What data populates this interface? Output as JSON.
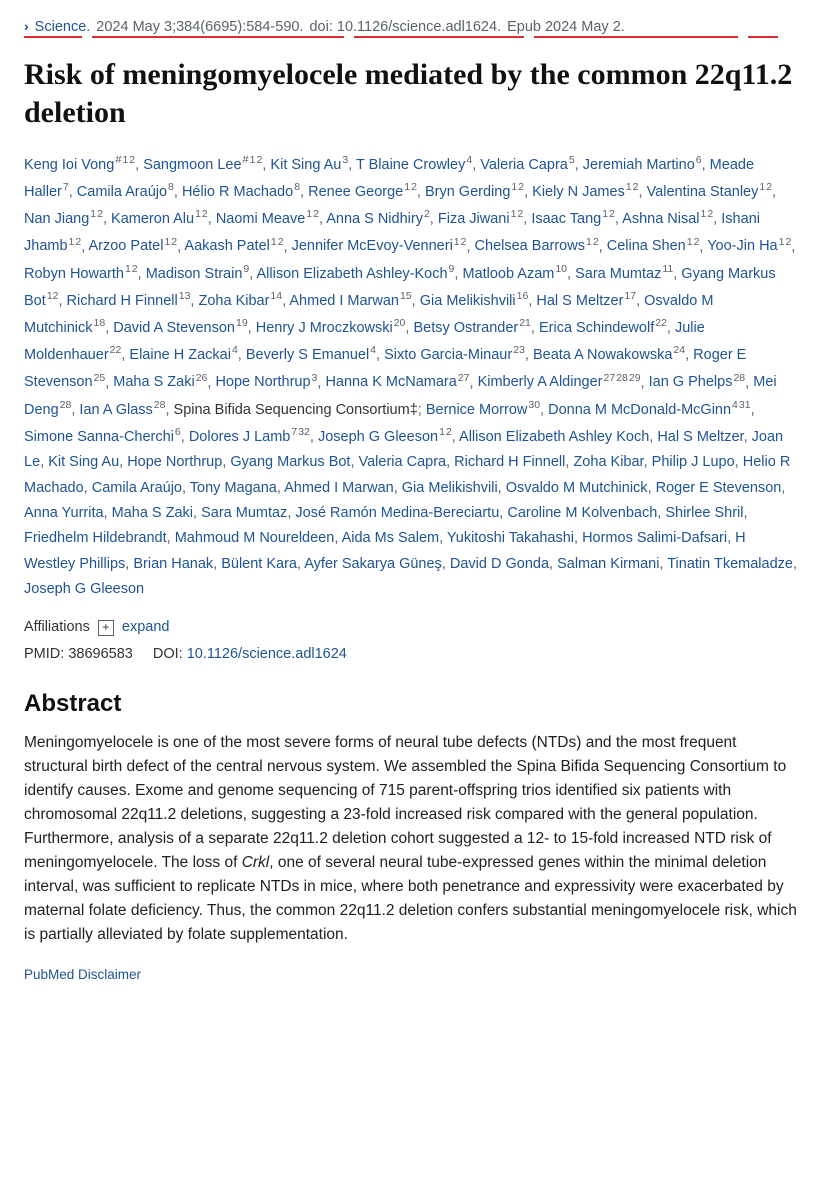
{
  "citation": {
    "journal": "Science.",
    "dateIssue": "2024 May 3;384(6695):584-590.",
    "doi": "doi: 10.1126/science.adl1624.",
    "epub": "Epub 2024 May 2."
  },
  "underlineWidths": [
    58,
    252,
    170,
    204,
    30
  ],
  "title": "Risk of meningomyelocele mediated by the common 22q11.2 deletion",
  "authors": [
    {
      "name": "Keng Ioi Vong",
      "sup": "# 1 2"
    },
    {
      "name": "Sangmoon Lee",
      "sup": "# 1 2"
    },
    {
      "name": "Kit Sing Au",
      "sup": "3"
    },
    {
      "name": "T Blaine Crowley",
      "sup": "4"
    },
    {
      "name": "Valeria Capra",
      "sup": "5"
    },
    {
      "name": "Jeremiah Martino",
      "sup": "6"
    },
    {
      "name": "Meade Haller",
      "sup": "7"
    },
    {
      "name": "Camila Araújo",
      "sup": "8"
    },
    {
      "name": "Hélio R Machado",
      "sup": "8"
    },
    {
      "name": "Renee George",
      "sup": "1 2"
    },
    {
      "name": "Bryn Gerding",
      "sup": "1 2"
    },
    {
      "name": "Kiely N James",
      "sup": "1 2"
    },
    {
      "name": "Valentina Stanley",
      "sup": "1 2"
    },
    {
      "name": "Nan Jiang",
      "sup": "1 2"
    },
    {
      "name": "Kameron Alu",
      "sup": "1 2"
    },
    {
      "name": "Naomi Meave",
      "sup": "1 2"
    },
    {
      "name": "Anna S Nidhiry",
      "sup": "2"
    },
    {
      "name": "Fiza Jiwani",
      "sup": "1 2"
    },
    {
      "name": "Isaac Tang",
      "sup": "1 2"
    },
    {
      "name": "Ashna Nisal",
      "sup": "1 2"
    },
    {
      "name": "Ishani Jhamb",
      "sup": "1 2"
    },
    {
      "name": "Arzoo Patel",
      "sup": "1 2"
    },
    {
      "name": "Aakash Patel",
      "sup": "1 2"
    },
    {
      "name": "Jennifer McEvoy-Venneri",
      "sup": "1 2"
    },
    {
      "name": "Chelsea Barrows",
      "sup": "1 2"
    },
    {
      "name": "Celina Shen",
      "sup": "1 2"
    },
    {
      "name": "Yoo-Jin Ha",
      "sup": "1 2"
    },
    {
      "name": "Robyn Howarth",
      "sup": "1 2"
    },
    {
      "name": "Madison Strain",
      "sup": "9"
    },
    {
      "name": "Allison Elizabeth Ashley-Koch",
      "sup": "9"
    },
    {
      "name": "Matloob Azam",
      "sup": "10"
    },
    {
      "name": "Sara Mumtaz",
      "sup": "11"
    },
    {
      "name": "Gyang Markus Bot",
      "sup": "12"
    },
    {
      "name": "Richard H Finnell",
      "sup": "13"
    },
    {
      "name": "Zoha Kibar",
      "sup": "14"
    },
    {
      "name": "Ahmed I Marwan",
      "sup": "15"
    },
    {
      "name": "Gia Melikishvili",
      "sup": "16"
    },
    {
      "name": "Hal S Meltzer",
      "sup": "17"
    },
    {
      "name": "Osvaldo M Mutchinick",
      "sup": "18"
    },
    {
      "name": "David A Stevenson",
      "sup": "19"
    },
    {
      "name": "Henry J Mroczkowski",
      "sup": "20"
    },
    {
      "name": "Betsy Ostrander",
      "sup": "21"
    },
    {
      "name": "Erica Schindewolf",
      "sup": "22"
    },
    {
      "name": "Julie Moldenhauer",
      "sup": "22"
    },
    {
      "name": "Elaine H Zackai",
      "sup": "4"
    },
    {
      "name": "Beverly S Emanuel",
      "sup": "4"
    },
    {
      "name": "Sixto Garcia-Minaur",
      "sup": "23"
    },
    {
      "name": "Beata A Nowakowska",
      "sup": "24"
    },
    {
      "name": "Roger E Stevenson",
      "sup": "25"
    },
    {
      "name": "Maha S Zaki",
      "sup": "26"
    },
    {
      "name": "Hope Northrup",
      "sup": "3"
    },
    {
      "name": "Hanna K McNamara",
      "sup": "27"
    },
    {
      "name": "Kimberly A Aldinger",
      "sup": "27 28 29"
    },
    {
      "name": "Ian G Phelps",
      "sup": "28"
    },
    {
      "name": "Mei Deng",
      "sup": "28"
    },
    {
      "name": "Ian A Glass",
      "sup": "28"
    },
    {
      "name": "Spina Bifida Sequencing Consortium‡",
      "sup": "",
      "nolink": true,
      "trailingSemi": true
    },
    {
      "name": "Bernice Morrow",
      "sup": "30"
    },
    {
      "name": "Donna M McDonald-McGinn",
      "sup": "4 31"
    },
    {
      "name": "Simone Sanna-Cherchi",
      "sup": "6"
    },
    {
      "name": "Dolores J Lamb",
      "sup": "7 32"
    },
    {
      "name": "Joseph G Gleeson",
      "sup": "1 2"
    },
    {
      "name": "Allison Elizabeth Ashley Koch",
      "sup": ""
    },
    {
      "name": "Hal S Meltzer",
      "sup": ""
    },
    {
      "name": "Joan Le",
      "sup": ""
    },
    {
      "name": "Kit Sing Au",
      "sup": ""
    },
    {
      "name": "Hope Northrup",
      "sup": ""
    },
    {
      "name": "Gyang Markus Bot",
      "sup": ""
    },
    {
      "name": "Valeria Capra",
      "sup": ""
    },
    {
      "name": "Richard H Finnell",
      "sup": ""
    },
    {
      "name": "Zoha Kibar",
      "sup": ""
    },
    {
      "name": "Philip J Lupo",
      "sup": ""
    },
    {
      "name": "Helio R Machado",
      "sup": ""
    },
    {
      "name": "Camila Araújo",
      "sup": ""
    },
    {
      "name": "Tony Magana",
      "sup": ""
    },
    {
      "name": "Ahmed I Marwan",
      "sup": ""
    },
    {
      "name": "Gia Melikishvili",
      "sup": ""
    },
    {
      "name": "Osvaldo M Mutchinick",
      "sup": ""
    },
    {
      "name": "Roger E Stevenson",
      "sup": ""
    },
    {
      "name": "Anna Yurrita",
      "sup": ""
    },
    {
      "name": "Maha S Zaki",
      "sup": ""
    },
    {
      "name": "Sara Mumtaz",
      "sup": ""
    },
    {
      "name": "José Ramón Medina-Bereciartu",
      "sup": ""
    },
    {
      "name": "Caroline M Kolvenbach",
      "sup": ""
    },
    {
      "name": "Shirlee Shril",
      "sup": ""
    },
    {
      "name": "Friedhelm Hildebrandt",
      "sup": ""
    },
    {
      "name": "Mahmoud M Noureldeen",
      "sup": ""
    },
    {
      "name": "Aida Ms Salem",
      "sup": ""
    },
    {
      "name": "Yukitoshi Takahashi",
      "sup": ""
    },
    {
      "name": "Hormos Salimi-Dafsari",
      "sup": ""
    },
    {
      "name": "H Westley Phillips",
      "sup": ""
    },
    {
      "name": "Brian Hanak",
      "sup": ""
    },
    {
      "name": "Bülent Kara",
      "sup": ""
    },
    {
      "name": "Ayfer Sakarya Güneş",
      "sup": ""
    },
    {
      "name": "David D Gonda",
      "sup": ""
    },
    {
      "name": "Salman Kirmani",
      "sup": ""
    },
    {
      "name": "Tinatin Tkemaladze",
      "sup": ""
    },
    {
      "name": "Joseph G Gleeson",
      "sup": ""
    }
  ],
  "affiliations": {
    "label": "Affiliations",
    "expand": "expand"
  },
  "ids": {
    "pmidLabel": "PMID:",
    "pmid": "38696583",
    "doiLabel": "DOI:",
    "doi": "10.1126/science.adl1624"
  },
  "abstractHeading": "Abstract",
  "abstractPre": "Meningomyelocele is one of the most severe forms of neural tube defects (NTDs) and the most frequent structural birth defect of the central nervous system. We assembled the Spina Bifida Sequencing Consortium to identify causes. Exome and genome sequencing of 715 parent-offspring trios identified six patients with chromosomal 22q11.2 deletions, suggesting a 23-fold increased risk compared with the general population. Furthermore, analysis of a separate 22q11.2 deletion cohort suggested a 12- to 15-fold increased NTD risk of meningomyelocele. The loss of ",
  "abstractItalic": "Crkl",
  "abstractPost": ", one of several neural tube-expressed genes within the minimal deletion interval, was sufficient to replicate NTDs in mice, where both penetrance and expressivity were exacerbated by maternal folate deficiency. Thus, the common 22q11.2 deletion confers substantial meningomyelocele risk, which is partially alleviated by folate supplementation.",
  "disclaimer": "PubMed Disclaimer"
}
